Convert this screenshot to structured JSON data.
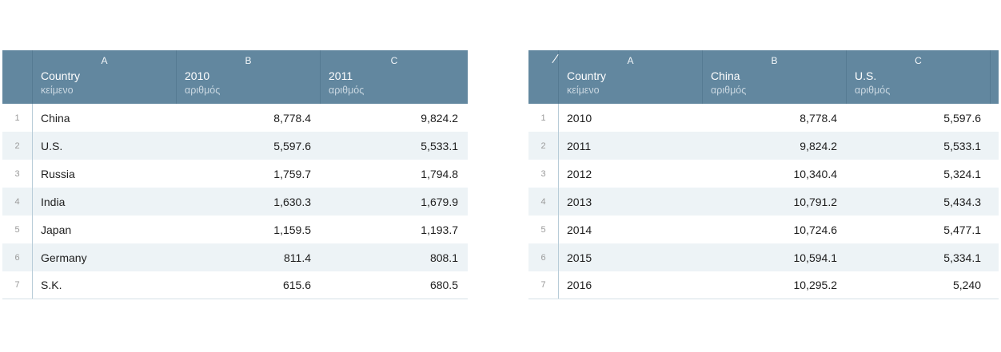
{
  "left_sheet": {
    "columns": [
      {
        "letter": "A",
        "name": "Country",
        "type": "κείμενο"
      },
      {
        "letter": "B",
        "name": "2010",
        "type": "αριθμός"
      },
      {
        "letter": "C",
        "name": "2011",
        "type": "αριθμός"
      }
    ],
    "rows": [
      {
        "n": "1",
        "a": "China",
        "b": "8,778.4",
        "c": "9,824.2"
      },
      {
        "n": "2",
        "a": "U.S.",
        "b": "5,597.6",
        "c": "5,533.1"
      },
      {
        "n": "3",
        "a": "Russia",
        "b": "1,759.7",
        "c": "1,794.8"
      },
      {
        "n": "4",
        "a": "India",
        "b": "1,630.3",
        "c": "1,679.9"
      },
      {
        "n": "5",
        "a": "Japan",
        "b": "1,159.5",
        "c": "1,193.7"
      },
      {
        "n": "6",
        "a": "Germany",
        "b": "811.4",
        "c": "808.1"
      },
      {
        "n": "7",
        "a": "S.K.",
        "b": "615.6",
        "c": "680.5"
      }
    ]
  },
  "right_sheet": {
    "columns": [
      {
        "letter": "A",
        "name": "Country",
        "type": "κείμενο"
      },
      {
        "letter": "B",
        "name": "China",
        "type": "αριθμός"
      },
      {
        "letter": "C",
        "name": "U.S.",
        "type": "αριθμός"
      }
    ],
    "rows": [
      {
        "n": "1",
        "a": "2010",
        "b": "8,778.4",
        "c": "5,597.6"
      },
      {
        "n": "2",
        "a": "2011",
        "b": "9,824.2",
        "c": "5,533.1"
      },
      {
        "n": "3",
        "a": "2012",
        "b": "10,340.4",
        "c": "5,324.1"
      },
      {
        "n": "4",
        "a": "2013",
        "b": "10,791.2",
        "c": "5,434.3"
      },
      {
        "n": "5",
        "a": "2014",
        "b": "10,724.6",
        "c": "5,477.1"
      },
      {
        "n": "6",
        "a": "2015",
        "b": "10,594.1",
        "c": "5,334.1"
      },
      {
        "n": "7",
        "a": "2016",
        "b": "10,295.2",
        "c": "5,240"
      }
    ]
  }
}
